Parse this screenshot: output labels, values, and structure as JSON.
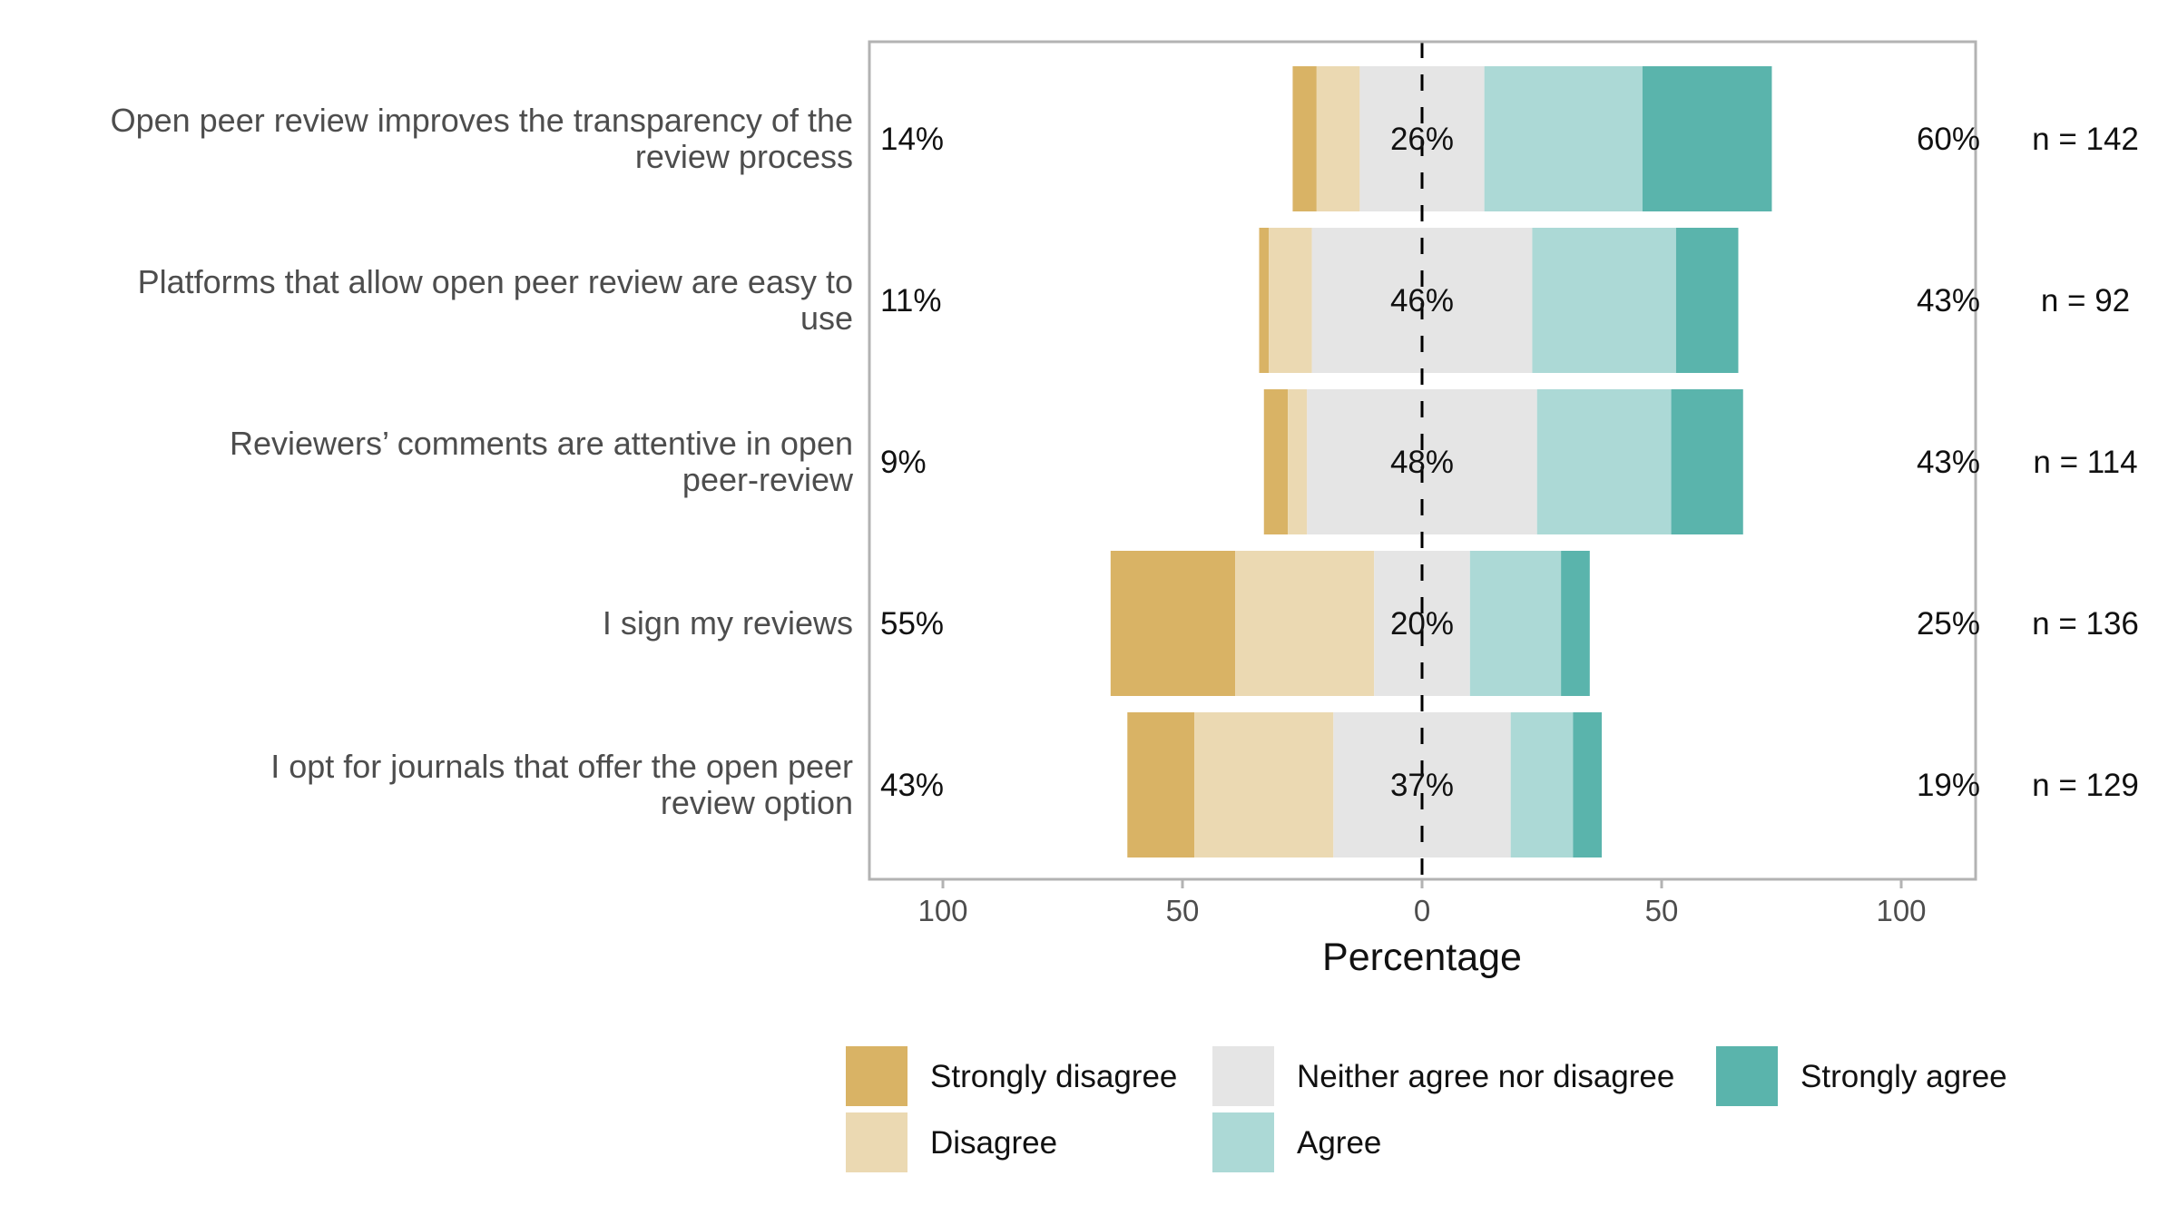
{
  "chart_data": {
    "type": "bar",
    "orientation": "horizontal",
    "stacked": "diverging",
    "xlabel": "Percentage",
    "ylabel": "",
    "xlim": [
      -100,
      100
    ],
    "tick_values": [
      -100,
      -50,
      0,
      50,
      100
    ],
    "tick_labels": [
      "100",
      "50",
      "0",
      "50",
      "100"
    ],
    "grid": false,
    "legend_position": "bottom",
    "levels": [
      "Strongly disagree",
      "Disagree",
      "Neither agree nor disagree",
      "Agree",
      "Strongly agree"
    ],
    "colors": {
      "Strongly disagree": "#d9b365",
      "Disagree": "#ebd9b2",
      "Neither agree nor disagree": "#e5e5e5",
      "Agree": "#acd9d6",
      "Strongly agree": "#5ab4ac"
    },
    "items": [
      {
        "label": [
          "Open peer review improves the transparency of the",
          "review process"
        ],
        "values": [
          5,
          9,
          26,
          33,
          27
        ],
        "left_label": "14%",
        "center_label": "26%",
        "right_label": "60%",
        "n_label": "n = 142"
      },
      {
        "label": [
          "Platforms that allow open peer review are easy to",
          "use"
        ],
        "values": [
          2,
          9,
          46,
          30,
          13
        ],
        "left_label": "11%",
        "center_label": "46%",
        "right_label": "43%",
        "n_label": "n = 92"
      },
      {
        "label": [
          "Reviewers’ comments are attentive in open",
          "peer-review"
        ],
        "values": [
          5,
          4,
          48,
          28,
          15
        ],
        "left_label": "9%",
        "center_label": "48%",
        "right_label": "43%",
        "n_label": "n = 114"
      },
      {
        "label": [
          "I sign my reviews"
        ],
        "values": [
          26,
          29,
          20,
          19,
          6
        ],
        "left_label": "55%",
        "center_label": "20%",
        "right_label": "25%",
        "n_label": "n = 136"
      },
      {
        "label": [
          "I opt for journals that offer the open peer",
          "review option"
        ],
        "values": [
          14,
          29,
          37,
          13,
          6
        ],
        "left_label": "43%",
        "center_label": "37%",
        "right_label": "19%",
        "n_label": "n = 129"
      }
    ]
  }
}
